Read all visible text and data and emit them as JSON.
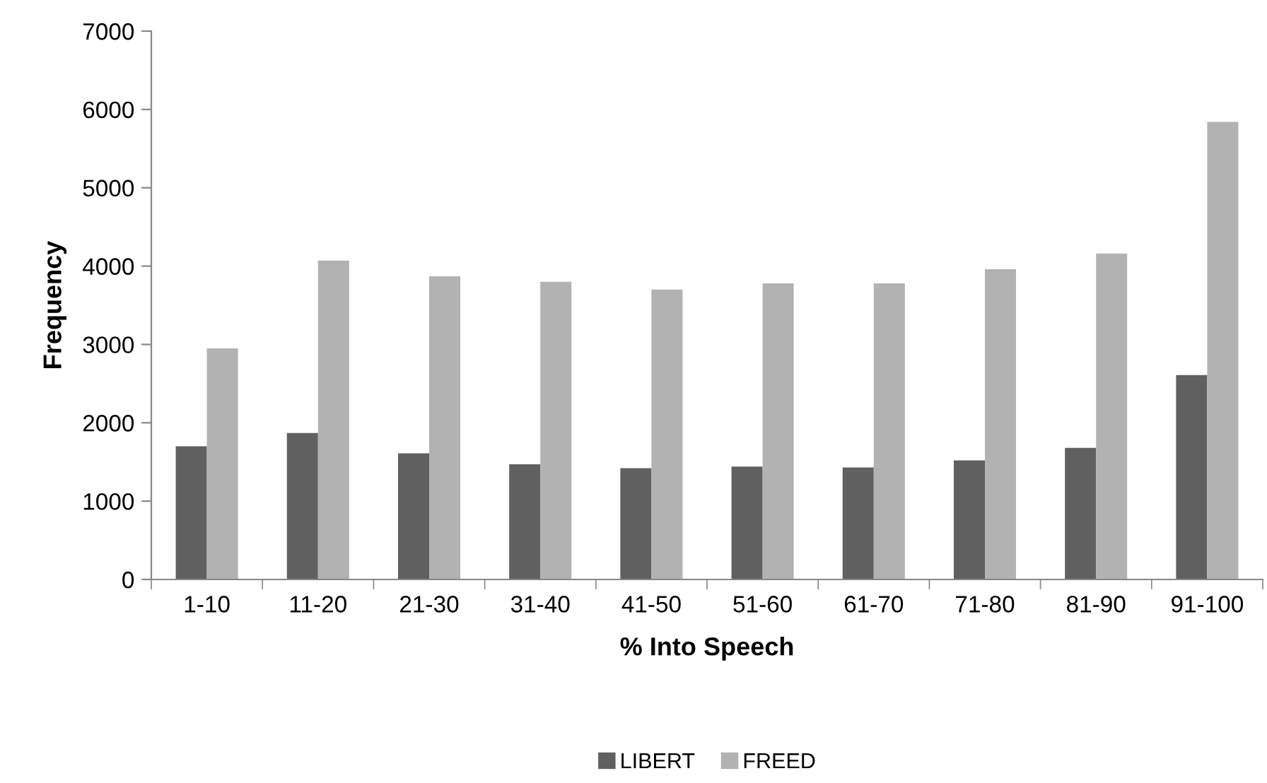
{
  "chart_data": {
    "type": "bar",
    "xlabel": "% Into Speech",
    "ylabel": "Frequency",
    "categories": [
      "1-10",
      "11-20",
      "21-30",
      "31-40",
      "41-50",
      "51-60",
      "61-70",
      "71-80",
      "81-90",
      "91-100"
    ],
    "series": [
      {
        "name": "LIBERT",
        "color": "#606060",
        "values": [
          1700,
          1870,
          1610,
          1470,
          1420,
          1440,
          1430,
          1520,
          1680,
          2610
        ]
      },
      {
        "name": "FREED",
        "color": "#b2b2b2",
        "values": [
          2950,
          4070,
          3870,
          3800,
          3700,
          3780,
          3780,
          3960,
          4160,
          5840
        ]
      }
    ],
    "ylim": [
      0,
      7000
    ],
    "yticks": [
      0,
      1000,
      2000,
      3000,
      4000,
      5000,
      6000,
      7000
    ],
    "grid": false,
    "legend": "bottom"
  }
}
